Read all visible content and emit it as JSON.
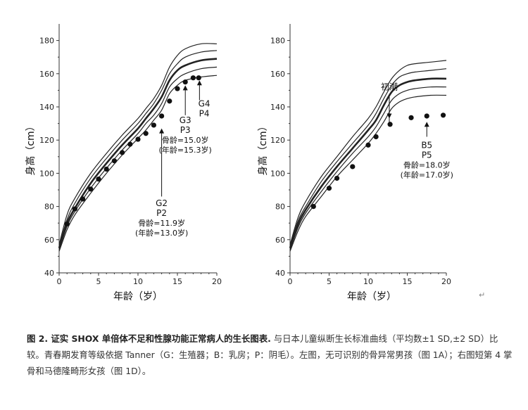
{
  "chart_data": [
    {
      "id": "chart-a",
      "type": "line",
      "xlabel": "年龄（岁）",
      "ylabel": "身高（cm）",
      "xlim": [
        0,
        20
      ],
      "ylim": [
        40,
        190
      ],
      "xticks": [
        0,
        5,
        10,
        15,
        20
      ],
      "yticks": [
        40,
        60,
        80,
        100,
        120,
        140,
        160,
        180
      ],
      "grid": false,
      "reference_curves": [
        {
          "emphasis": false,
          "x": [
            0,
            1,
            2,
            4,
            6,
            8,
            10,
            11,
            12,
            13,
            14,
            15,
            16,
            18,
            20
          ],
          "y": [
            57,
            75,
            85,
            100,
            112,
            123,
            133,
            139,
            145,
            153,
            164,
            171,
            175,
            178,
            178
          ]
        },
        {
          "emphasis": false,
          "x": [
            0,
            1,
            2,
            4,
            6,
            8,
            10,
            11,
            12,
            13,
            14,
            15,
            16,
            18,
            20
          ],
          "y": [
            56,
            72,
            82,
            97,
            109,
            120,
            130,
            136,
            142,
            150,
            160,
            166,
            170,
            173,
            174
          ]
        },
        {
          "emphasis": true,
          "x": [
            0,
            1,
            2,
            4,
            6,
            8,
            10,
            11,
            12,
            13,
            14,
            15,
            16,
            18,
            20
          ],
          "y": [
            55,
            70,
            79,
            94,
            106,
            117,
            127,
            133,
            139,
            146,
            156,
            162,
            165,
            168,
            169
          ]
        },
        {
          "emphasis": false,
          "x": [
            0,
            1,
            2,
            4,
            6,
            8,
            10,
            11,
            12,
            13,
            14,
            15,
            16,
            18,
            20
          ],
          "y": [
            54,
            68,
            77,
            91,
            103,
            114,
            124,
            130,
            135,
            142,
            152,
            157,
            160,
            163,
            164
          ]
        },
        {
          "emphasis": false,
          "x": [
            0,
            1,
            2,
            4,
            6,
            8,
            10,
            11,
            12,
            13,
            14,
            15,
            16,
            18,
            20
          ],
          "y": [
            53,
            66,
            75,
            88,
            100,
            111,
            121,
            126,
            132,
            138,
            148,
            153,
            156,
            158,
            159
          ]
        }
      ],
      "points": {
        "x": [
          1,
          2,
          3,
          4,
          5,
          6,
          7,
          8,
          9,
          10,
          11,
          12,
          13,
          14,
          15,
          16,
          17,
          17.7
        ],
        "y": [
          69.5,
          78.5,
          84.5,
          90.5,
          96.5,
          102.5,
          107.5,
          112.5,
          117.5,
          120.5,
          124,
          129,
          134.5,
          143.5,
          151,
          155,
          157.5,
          157.5
        ]
      },
      "annotations": [
        {
          "lines": [
            "G4",
            "P4"
          ],
          "arrow_x": 17.8,
          "arrow_from_y": 144,
          "arrow_to_y": 156,
          "text_x": 18.4,
          "text_y": 142
        },
        {
          "lines": [
            "G3",
            "P3",
            "骨龄=15.0岁",
            "(年龄=15.3岁)"
          ],
          "arrow_x": 16,
          "arrow_from_y": 135,
          "arrow_to_y": 153,
          "text_x": 16,
          "text_y": 132
        },
        {
          "lines": [
            "G2",
            "P2",
            "骨龄=11.9岁",
            "(年龄=13.0岁)"
          ],
          "arrow_x": 13,
          "arrow_from_y": 86,
          "arrow_to_y": 127,
          "text_x": 13,
          "text_y": 82
        }
      ]
    },
    {
      "id": "chart-b",
      "type": "line",
      "xlabel": "年龄（岁）",
      "ylabel": "身高（cm）",
      "xlim": [
        0,
        20
      ],
      "ylim": [
        40,
        190
      ],
      "xticks": [
        0,
        5,
        10,
        15,
        20
      ],
      "yticks": [
        40,
        60,
        80,
        100,
        120,
        140,
        160,
        180
      ],
      "grid": false,
      "reference_curves": [
        {
          "emphasis": false,
          "x": [
            0,
            1,
            2,
            4,
            6,
            8,
            10,
            11,
            12,
            13,
            14,
            15,
            16,
            18,
            20
          ],
          "y": [
            57,
            73,
            83,
            98,
            110,
            122,
            133,
            140,
            149,
            157,
            162,
            165,
            166,
            167,
            168
          ]
        },
        {
          "emphasis": false,
          "x": [
            0,
            1,
            2,
            4,
            6,
            8,
            10,
            11,
            12,
            13,
            14,
            15,
            16,
            18,
            20
          ],
          "y": [
            56,
            71,
            80,
            95,
            107,
            118,
            129,
            136,
            145,
            153,
            158,
            160,
            161,
            162,
            163
          ]
        },
        {
          "emphasis": true,
          "x": [
            0,
            1,
            2,
            4,
            6,
            8,
            10,
            11,
            12,
            13,
            14,
            15,
            16,
            18,
            20
          ],
          "y": [
            55,
            69,
            78,
            92,
            104,
            115,
            126,
            132,
            141,
            149,
            153,
            155,
            156,
            157,
            157
          ]
        },
        {
          "emphasis": false,
          "x": [
            0,
            1,
            2,
            4,
            6,
            8,
            10,
            11,
            12,
            13,
            14,
            15,
            16,
            18,
            20
          ],
          "y": [
            54,
            67,
            76,
            89,
            101,
            112,
            122,
            128,
            136,
            144,
            148,
            150,
            151,
            152,
            152
          ]
        },
        {
          "emphasis": false,
          "x": [
            0,
            1,
            2,
            4,
            6,
            8,
            10,
            11,
            12,
            13,
            14,
            15,
            16,
            18,
            20
          ],
          "y": [
            53,
            65,
            74,
            86,
            98,
            108,
            118,
            124,
            131,
            139,
            143,
            145,
            146,
            147,
            147
          ]
        }
      ],
      "points": {
        "x": [
          3,
          5,
          6,
          8,
          10,
          11,
          12.8,
          15.5,
          17.5,
          19.6
        ],
        "y": [
          80,
          91,
          97,
          104,
          117,
          122,
          129.5,
          133.5,
          134.5,
          135
        ]
      },
      "annotations": [
        {
          "lines": [
            "初潮"
          ],
          "arrow_x": 12.7,
          "arrow_from_y": 146,
          "arrow_to_y": 133,
          "text_x": 12.7,
          "text_y": 152
        },
        {
          "lines": [
            "B5",
            "P5",
            "骨龄=18.0岁",
            "(年龄=17.0岁)"
          ],
          "arrow_x": 17.5,
          "arrow_from_y": 122,
          "arrow_to_y": 131,
          "text_x": 17.5,
          "text_y": 117
        }
      ]
    }
  ],
  "caption": {
    "bold": "图 2. 证实 SHOX 单倍体不足和性腺功能正常病人的生长图表.",
    "text": " 与日本儿童纵断生长标准曲线（平均数±1 SD,±2 SD）比较。青春期发育等级依据 Tanner（G：生殖器；B：乳房；P：阴毛）。左图，无可识别的骨异常男孩（图 1A）；右图短第 4 掌骨和马德隆畸形女孩（图 1D）。"
  },
  "colors": {
    "line": "#222222",
    "dot": "#111111",
    "axis": "#333333",
    "caption": "#333333"
  }
}
